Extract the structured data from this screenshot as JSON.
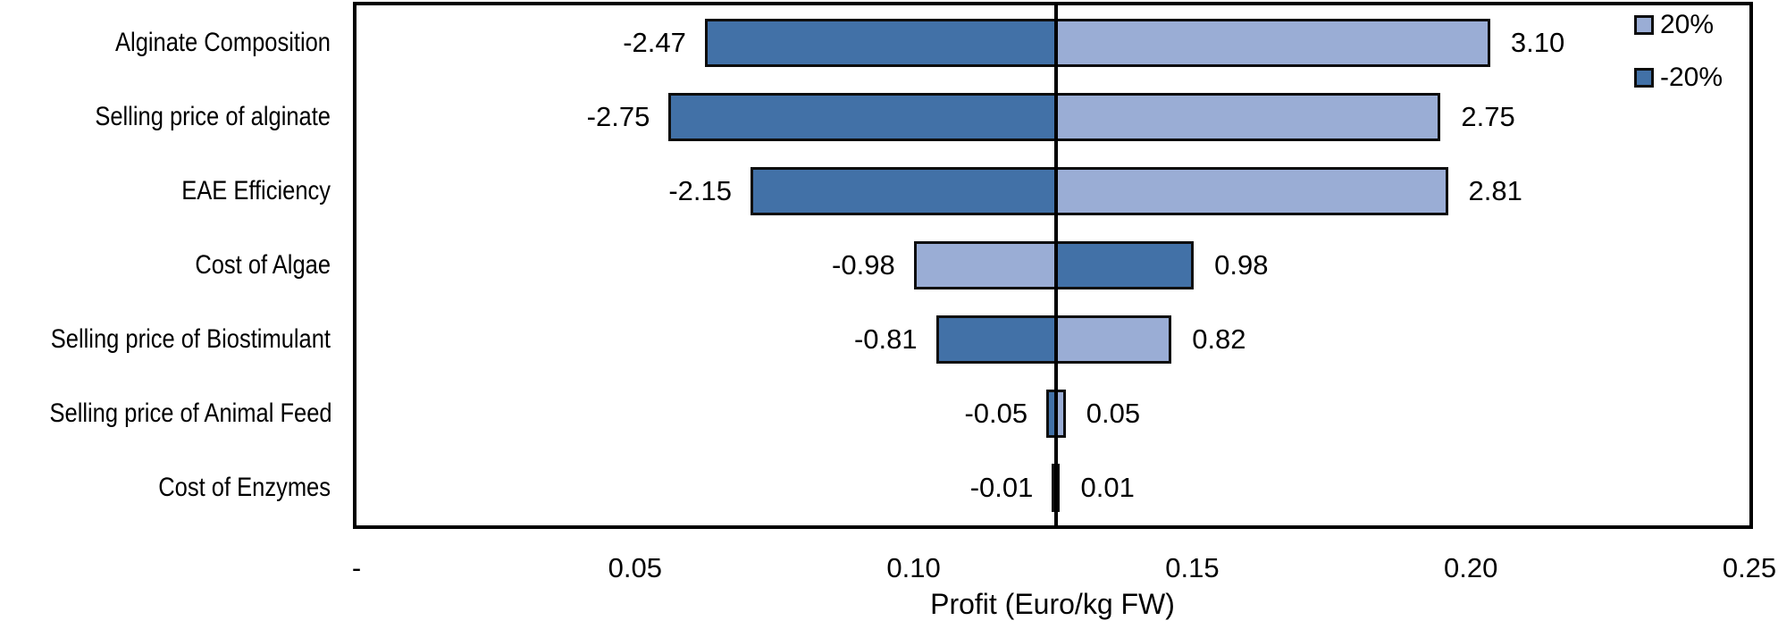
{
  "chart_data": {
    "type": "bar",
    "subtype": "tornado-sensitivity",
    "title": "",
    "xlabel": "Profit (Euro/kg FW)",
    "x_axis": {
      "min": 0,
      "max": 0.25,
      "ticks": [
        {
          "value": 0.0,
          "label": "-"
        },
        {
          "value": 0.05,
          "label": "0.05"
        },
        {
          "value": 0.1,
          "label": "0.10"
        },
        {
          "value": 0.15,
          "label": "0.15"
        },
        {
          "value": 0.2,
          "label": "0.20"
        },
        {
          "value": 0.25,
          "label": "0.25"
        }
      ]
    },
    "baseline_value": 0.1255,
    "grid": false,
    "legend_position": "top-right-inside",
    "legend": [
      {
        "name": "20%",
        "color": "#9AADD5"
      },
      {
        "name": "-20%",
        "color": "#4271A7"
      }
    ],
    "colors": {
      "light": "#9AADD5",
      "dark": "#4271A7",
      "outline": "#0d0d0d"
    },
    "rows": [
      {
        "category": "Alginate Composition",
        "low": {
          "value": 0.063,
          "label": "-2.47",
          "series": "-20%"
        },
        "high": {
          "value": 0.203,
          "label": "3.10",
          "series": "20%"
        }
      },
      {
        "category": "Selling price of alginate",
        "low": {
          "value": 0.0565,
          "label": "-2.75",
          "series": "-20%"
        },
        "high": {
          "value": 0.1941,
          "label": "2.75",
          "series": "20%"
        }
      },
      {
        "category": "EAE Efficiency",
        "low": {
          "value": 0.0712,
          "label": "-2.15",
          "series": "-20%"
        },
        "high": {
          "value": 0.1954,
          "label": "2.81",
          "series": "20%"
        }
      },
      {
        "category": "Cost of Algae",
        "low": {
          "value": 0.1005,
          "label": "-0.98",
          "series": "20%"
        },
        "high": {
          "value": 0.1498,
          "label": "0.98",
          "series": "-20%"
        }
      },
      {
        "category": "Selling price of Biostimulant",
        "low": {
          "value": 0.1045,
          "label": "-0.81",
          "series": "-20%"
        },
        "high": {
          "value": 0.1458,
          "label": "0.82",
          "series": "20%"
        }
      },
      {
        "category": "Selling price of Animal Feed",
        "low": {
          "value": 0.1243,
          "label": "-0.05",
          "series": "-20%"
        },
        "high": {
          "value": 0.1268,
          "label": "0.05",
          "series": "20%"
        }
      },
      {
        "category": "Cost of Enzymes",
        "low": {
          "value": 0.1253,
          "label": "-0.01",
          "series": "20%"
        },
        "high": {
          "value": 0.1258,
          "label": "0.01",
          "series": "-20%"
        }
      }
    ]
  }
}
